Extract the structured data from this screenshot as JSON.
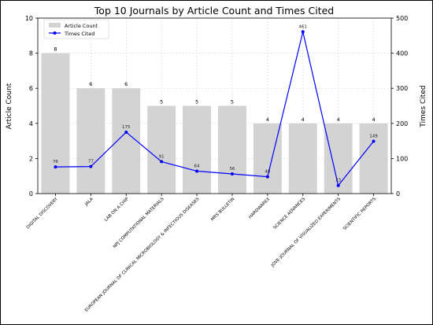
{
  "chart_data": {
    "type": "bar",
    "title": "Top 10 Journals by Article Count and Times Cited",
    "categories": [
      "DIGITAL DISCOVERY",
      "JALA",
      "LAB ON A CHIP",
      "NPJ COMPUTATIONAL MATERIALS",
      "EUROPEAN JOURNAL OF CLINICAL MICROBIOLOGY & INFECTIOUS DISEASES",
      "MRS BULLETIN",
      "HARDWAREX",
      "SCIENCE ADVANCES",
      "JOVE-JOURNAL OF VISUALIZED EXPERIMENTS",
      "SCIENTIFIC REPORTS"
    ],
    "series": [
      {
        "name": "Article Count",
        "type": "bar",
        "axis": "left",
        "color": "#d3d3d3",
        "values": [
          8,
          6,
          6,
          5,
          5,
          5,
          4,
          4,
          4,
          4
        ]
      },
      {
        "name": "Times Cited",
        "type": "line",
        "axis": "right",
        "color": "#0000ff",
        "values": [
          76,
          77,
          175,
          91,
          64,
          56,
          48,
          461,
          23,
          149
        ]
      }
    ],
    "ylabel": "Article Count",
    "y2label": "Times Cited",
    "ylim": [
      0,
      10
    ],
    "y2lim": [
      0,
      500
    ],
    "yticks": [
      0,
      2,
      4,
      6,
      8,
      10
    ],
    "y2ticks": [
      0,
      100,
      200,
      300,
      400,
      500
    ],
    "grid": true,
    "legend_placement": "top-left"
  }
}
